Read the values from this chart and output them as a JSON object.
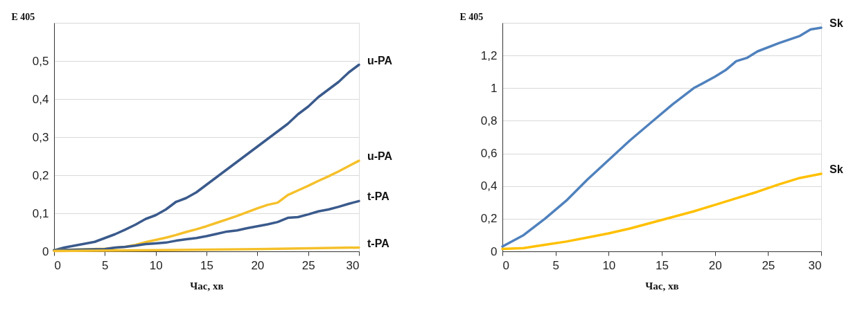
{
  "chart_data": [
    {
      "type": "line",
      "xlabel": "Час, хв",
      "ylabel": "E 405",
      "xlim": [
        0,
        30
      ],
      "xticks": [
        0,
        5,
        10,
        15,
        20,
        25,
        30
      ],
      "ylim": [
        0,
        0.6
      ],
      "yticks": [
        0,
        {
          "value": 0.1,
          "label": "0,1"
        },
        {
          "value": 0.2,
          "label": "0,2"
        },
        {
          "value": 0.3,
          "label": "0,3"
        },
        {
          "value": 0.4,
          "label": "0,4"
        },
        {
          "value": 0.5,
          "label": "0,5"
        },
        {
          "value": 0.6,
          "label": null
        }
      ],
      "grid": "y",
      "legend": false,
      "marker": "none",
      "line_style": "solid",
      "series": [
        {
          "name": "u-PA",
          "color": "#3a5a8c",
          "x": [
            0,
            1,
            2,
            3,
            4,
            5,
            6,
            7,
            8,
            9,
            10,
            11,
            12,
            13,
            14,
            15,
            16,
            17,
            18,
            19,
            20,
            21,
            22,
            23,
            24,
            25,
            26,
            27,
            28,
            29,
            30
          ],
          "values": [
            0.003,
            0.01,
            0.015,
            0.02,
            0.025,
            0.035,
            0.045,
            0.057,
            0.07,
            0.085,
            0.095,
            0.11,
            0.13,
            0.14,
            0.155,
            0.175,
            0.195,
            0.215,
            0.235,
            0.255,
            0.275,
            0.295,
            0.315,
            0.335,
            0.36,
            0.38,
            0.405,
            0.425,
            0.445,
            0.47,
            0.49
          ]
        },
        {
          "name": "u-PA",
          "color": "#f5c02a",
          "x": [
            0,
            5,
            7,
            8,
            9,
            10,
            11,
            12,
            13,
            14,
            15,
            16,
            17,
            18,
            19,
            20,
            21,
            22,
            23,
            24,
            25,
            26,
            27,
            28,
            29,
            30
          ],
          "values": [
            0.003,
            0.007,
            0.012,
            0.017,
            0.024,
            0.03,
            0.036,
            0.043,
            0.051,
            0.058,
            0.066,
            0.075,
            0.084,
            0.093,
            0.103,
            0.113,
            0.122,
            0.128,
            0.148,
            0.16,
            0.172,
            0.185,
            0.197,
            0.21,
            0.224,
            0.238
          ]
        },
        {
          "name": "t-PA",
          "color": "#3a5a8c",
          "x": [
            0,
            5,
            6,
            7,
            8,
            9,
            10,
            11,
            12,
            13,
            14,
            15,
            16,
            17,
            18,
            19,
            20,
            21,
            22,
            23,
            24,
            25,
            26,
            27,
            28,
            29,
            30
          ],
          "values": [
            0.003,
            0.006,
            0.01,
            0.012,
            0.015,
            0.019,
            0.021,
            0.023,
            0.028,
            0.032,
            0.035,
            0.04,
            0.046,
            0.052,
            0.055,
            0.061,
            0.066,
            0.071,
            0.077,
            0.088,
            0.09,
            0.097,
            0.105,
            0.11,
            0.117,
            0.125,
            0.132
          ]
        },
        {
          "name": "t-PA",
          "color": "#f5c02a",
          "x": [
            0,
            10,
            20,
            30
          ],
          "values": [
            0.001,
            0.003,
            0.006,
            0.01
          ]
        }
      ]
    },
    {
      "type": "line",
      "xlabel": "Час, хв",
      "ylabel": "E 405",
      "xlim": [
        0,
        30
      ],
      "xticks": [
        0,
        5,
        10,
        15,
        20,
        25,
        30
      ],
      "ylim": [
        0,
        1.4
      ],
      "yticks": [
        0,
        {
          "value": 0.2,
          "label": "0,2"
        },
        {
          "value": 0.4,
          "label": "0,4"
        },
        {
          "value": 0.6,
          "label": "0,6"
        },
        {
          "value": 0.8,
          "label": "0,8"
        },
        1,
        {
          "value": 1.2,
          "label": "1,2"
        },
        {
          "value": 1.4,
          "label": null
        }
      ],
      "grid": "y",
      "legend": false,
      "marker": "none",
      "line_style": "solid",
      "series": [
        {
          "name": "Sk",
          "color": "#4f81bd",
          "x": [
            0,
            2,
            4,
            6,
            8,
            10,
            12,
            14,
            16,
            18,
            20,
            21,
            22,
            23,
            24,
            26,
            28,
            29,
            30
          ],
          "values": [
            0.03,
            0.1,
            0.2,
            0.31,
            0.44,
            0.56,
            0.68,
            0.79,
            0.9,
            1.0,
            1.07,
            1.11,
            1.165,
            1.185,
            1.225,
            1.275,
            1.32,
            1.36,
            1.37
          ]
        },
        {
          "name": "Sk",
          "color": "#ffc000",
          "x": [
            0,
            2,
            4,
            6,
            8,
            10,
            12,
            14,
            16,
            18,
            20,
            22,
            24,
            26,
            28,
            30
          ],
          "values": [
            0.015,
            0.02,
            0.04,
            0.06,
            0.085,
            0.11,
            0.14,
            0.175,
            0.21,
            0.245,
            0.285,
            0.325,
            0.365,
            0.41,
            0.45,
            0.475
          ]
        }
      ]
    }
  ]
}
